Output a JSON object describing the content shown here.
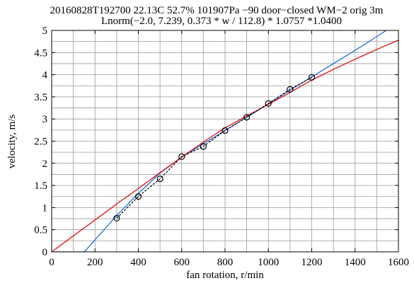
{
  "chart_data": {
    "type": "line",
    "title_line1": "20160828T192700 22.13C 52.7% 101907Pa −90 door−closed WM−2 orig 3m",
    "title_line2": "Lnorm(−2.0, 7.239, 0.373 * w / 112.8) * 1.0757 *1.0400",
    "xlabel": "fan rotation, r/min",
    "ylabel": "velocity, m/s",
    "xlim": [
      0,
      1600
    ],
    "ylim": [
      0,
      5
    ],
    "xticks": [
      0,
      200,
      400,
      600,
      800,
      1000,
      1200,
      1400,
      1600
    ],
    "xtick_labels": [
      "0",
      "200",
      "400",
      "600",
      "800",
      "1000",
      "1200",
      "1400",
      "1600"
    ],
    "yticks": [
      0,
      0.5,
      1,
      1.5,
      2,
      2.5,
      3,
      3.5,
      4,
      4.5,
      5
    ],
    "ytick_labels": [
      "0",
      "0.5",
      "1",
      "1.5",
      "2",
      "2.5",
      "3",
      "3.5",
      "4",
      "4.5",
      "5"
    ],
    "x_minor_step": 100,
    "y_minor_step": 0.25,
    "grid": true,
    "series": [
      {
        "style": "solid",
        "color": "#1f6fd6",
        "x": [
          0,
          150,
          200,
          300,
          400,
          500,
          600,
          700,
          800,
          900,
          1000,
          1100,
          1200,
          1300,
          1400,
          1500,
          1550,
          1600
        ],
        "y": [
          0,
          0,
          0.27,
          0.82,
          1.32,
          1.78,
          2.14,
          2.44,
          2.74,
          3.04,
          3.34,
          3.65,
          3.95,
          4.25,
          4.55,
          4.86,
          5.02,
          5.2
        ]
      },
      {
        "style": "solid",
        "color": "#e01010",
        "x": [
          0,
          100,
          200,
          300,
          400,
          500,
          600,
          700,
          800,
          900,
          1000,
          1100,
          1200,
          1300,
          1400,
          1500,
          1600
        ],
        "y": [
          0,
          0.36,
          0.72,
          1.08,
          1.43,
          1.79,
          2.14,
          2.48,
          2.8,
          3.07,
          3.33,
          3.6,
          3.88,
          4.12,
          4.35,
          4.57,
          4.78
        ]
      },
      {
        "style": "dashed-markers",
        "color": "#000000",
        "marker": "circle",
        "x": [
          300,
          400,
          500,
          600,
          700,
          800,
          900,
          1000,
          1100,
          1200
        ],
        "y": [
          0.76,
          1.25,
          1.65,
          2.15,
          2.38,
          2.74,
          3.04,
          3.35,
          3.67,
          3.94
        ]
      }
    ]
  }
}
